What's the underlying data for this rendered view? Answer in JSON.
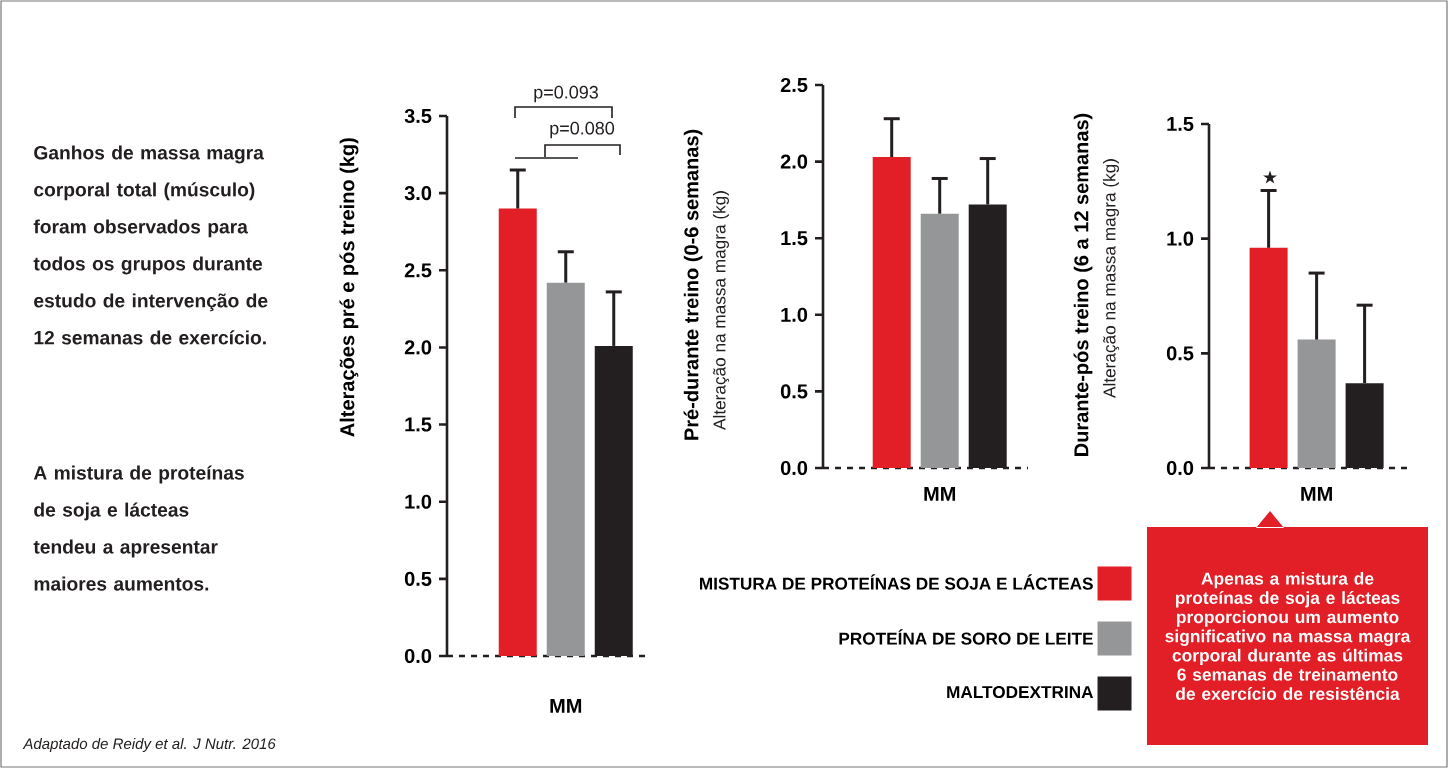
{
  "chart_data": [
    {
      "type": "bar",
      "ylabel": "Alterações pré e pós treino (kg)",
      "categories": [
        "MM"
      ],
      "series": [
        {
          "color": "#e21e26",
          "values": [
            2.9
          ],
          "errors": [
            [
              2.9,
              3.15
            ]
          ]
        },
        {
          "color": "#959698",
          "values": [
            2.42
          ],
          "errors": [
            [
              2.42,
              2.62
            ]
          ]
        },
        {
          "color": "#231f20",
          "values": [
            2.01
          ],
          "errors": [
            [
              2.01,
              2.36
            ]
          ]
        }
      ],
      "ylim": [
        0,
        3.5
      ],
      "yticks": [
        {
          "value": 0,
          "label": "0.0"
        },
        0.5,
        {
          "value": 1,
          "label": "1.0"
        },
        1.5,
        {
          "value": 2,
          "label": "2.0"
        },
        2.5,
        {
          "value": 3,
          "label": "3.0"
        },
        3.5
      ],
      "annotations": [
        "p=0.093",
        "p=0.080",
        "Ganhos de massa magra corporal total (músculo) foram observados para todos os grupos durante estudo de intervenção de 12 semanas de exercício.",
        "A mistura de proteínas de soja e lácteas tendeu a apresentar maiores aumentos.",
        "Adaptado de Reidy et al. J Nutr. 2016"
      ]
    },
    {
      "type": "bar",
      "ylabel": "Pré-durante treino (0-6 semanas)",
      "categories": [
        "MM"
      ],
      "series": [
        {
          "name": "MISTURA DE PROTEÍNAS DE SOJA E LÁCTEAS",
          "color": "#e21e26",
          "values": [
            2.03
          ],
          "errors": [
            [
              2.03,
              2.28
            ]
          ]
        },
        {
          "name": "PROTEÍNA DE SORO DE LEITE",
          "color": "#959698",
          "values": [
            1.66
          ],
          "errors": [
            [
              1.66,
              1.89
            ]
          ]
        },
        {
          "name": "MALTODEXTRINA",
          "color": "#231f20",
          "values": [
            1.72
          ],
          "errors": [
            [
              1.72,
              2.02
            ]
          ]
        }
      ],
      "ylim": [
        0,
        2.5
      ],
      "yticks": [
        {
          "value": 0,
          "label": "0.0"
        },
        0.5,
        {
          "value": 1,
          "label": "1.0"
        },
        1.5,
        {
          "value": 2,
          "label": "2.0"
        },
        2.5
      ],
      "legend": "bottom right",
      "annotations": [
        "Alteração na massa magra (kg)"
      ]
    },
    {
      "type": "bar",
      "ylabel": "Durante-pós treino (6 a 12 semanas)",
      "categories": [
        "MM"
      ],
      "series": [
        {
          "color": "#e21e26",
          "values": [
            0.96
          ],
          "errors": [
            [
              0.96,
              1.21
            ]
          ]
        },
        {
          "color": "#959698",
          "values": [
            0.56
          ],
          "errors": [
            [
              0.56,
              0.85
            ]
          ]
        },
        {
          "color": "#231f20",
          "values": [
            0.37
          ],
          "errors": [
            [
              0.37,
              0.71
            ]
          ]
        }
      ],
      "ylim": [
        0,
        1.5
      ],
      "yticks": [
        {
          "value": 0,
          "label": "0.0"
        },
        0.5,
        {
          "value": 1,
          "label": "1.0"
        },
        1.5
      ],
      "annotations": [
        "★",
        "Alteração na massa magra (kg)",
        "Apenas a mistura de proteínas de soja e lácteas proporcionou um aumento significativo na massa magra corporal durante as últimas 6 semanas de treinamento de exercício de resistência"
      ]
    }
  ]
}
